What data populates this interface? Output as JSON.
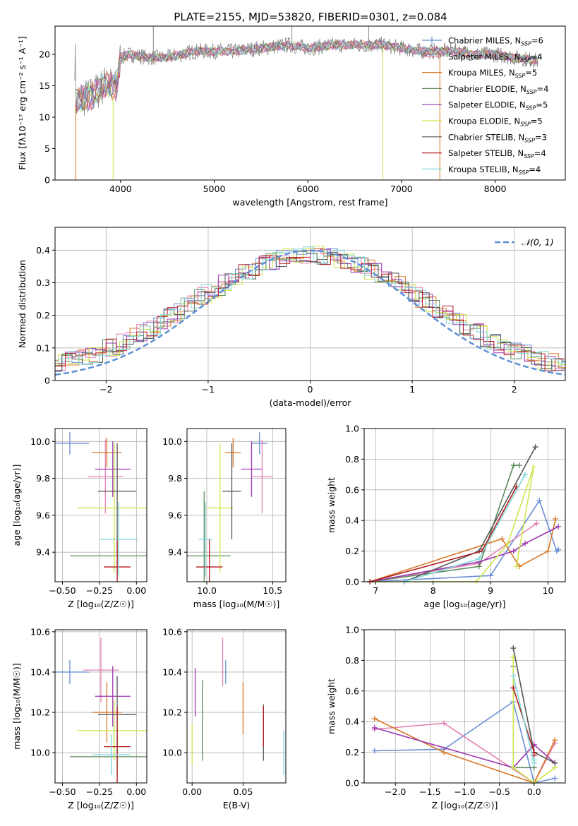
{
  "colors": {
    "chabrier_miles": "#6a8fd6",
    "salpeter_miles": "#e67fb3",
    "kroupa_miles": "#d97828",
    "chabrier_elodie": "#5c8a5c",
    "salpeter_elodie": "#9a3ab0",
    "kroupa_elodie": "#cde64c",
    "chabrier_stelib": "#555555",
    "salpeter_stelib": "#b3191e",
    "kroupa_stelib": "#7fd6d9",
    "data_spectrum": "#888888",
    "gaussian": "#5b8fd6",
    "grid": "#b0b0b0"
  },
  "chart_data": [
    {
      "id": "spectrum",
      "type": "line",
      "title": "PLATE=2155, MJD=53820, FIBERID=0301, z=0.084",
      "xlabel": "wavelength [Angstrom, rest frame]",
      "ylabel": "Flux [fλ10⁻¹⁷ erg cm⁻² s⁻¹ A⁻¹]",
      "xlim": [
        3300,
        8750
      ],
      "ylim": [
        0,
        24.5
      ],
      "xticks": [
        4000,
        5000,
        6000,
        7000,
        8000
      ],
      "yticks": [
        0,
        5,
        10,
        15,
        20
      ],
      "grid": false,
      "legend_position": "right",
      "legend": [
        {
          "label": "Chabrier MILES, N",
          "sub": "SSP",
          "suffix": "=6",
          "key": "chabrier_miles",
          "marker": true
        },
        {
          "label": "Salpeter MILES, N",
          "sub": "SSP",
          "suffix": "=4",
          "key": "salpeter_miles",
          "marker": false
        },
        {
          "label": "Kroupa MILES, N",
          "sub": "SSP",
          "suffix": "=5",
          "key": "kroupa_miles",
          "marker": false
        },
        {
          "label": "Chabrier ELODIE, N",
          "sub": "SSP",
          "suffix": "=4",
          "key": "chabrier_elodie",
          "marker": false
        },
        {
          "label": "Salpeter ELODIE, N",
          "sub": "SSP",
          "suffix": "=5",
          "key": "salpeter_elodie",
          "marker": false
        },
        {
          "label": "Kroupa ELODIE, N",
          "sub": "SSP",
          "suffix": "=5",
          "key": "kroupa_elodie",
          "marker": false
        },
        {
          "label": "Chabrier STELIB, N",
          "sub": "SSP",
          "suffix": "=3",
          "key": "chabrier_stelib",
          "marker": false
        },
        {
          "label": "Salpeter STELIB, N",
          "sub": "SSP",
          "suffix": "=4",
          "key": "salpeter_stelib",
          "marker": false
        },
        {
          "label": "Kroupa STELIB, N",
          "sub": "SSP",
          "suffix": "=4",
          "key": "kroupa_stelib",
          "marker": false
        }
      ],
      "continuum": {
        "x": [
          3520,
          3700,
          3850,
          3950,
          4000,
          4100,
          4300,
          4500,
          4800,
          5200,
          5500,
          5800,
          6000,
          6300,
          6600,
          6800,
          7000,
          7200,
          7400,
          7600,
          7800,
          8000,
          8200,
          8450
        ],
        "y": [
          12.5,
          13.5,
          15.5,
          14.5,
          19.5,
          20.0,
          19.5,
          19.5,
          20.5,
          20.5,
          21.0,
          21.5,
          21.0,
          21.5,
          21.5,
          21.5,
          21.0,
          20.5,
          20.5,
          20.5,
          20.0,
          20.0,
          19.5,
          19.0
        ]
      },
      "data_spikes": {
        "x": [
          3920,
          4350,
          5830,
          6750,
          7400
        ],
        "y": [
          0,
          24.5,
          24.5,
          24.5,
          0
        ]
      }
    },
    {
      "id": "residual_hist",
      "type": "step",
      "xlabel": "(data-model)/error",
      "ylabel": "Normed distribution",
      "xlim": [
        -2.5,
        2.5
      ],
      "ylim": [
        0,
        0.47
      ],
      "xticks": [
        -2,
        -1,
        0,
        1,
        2
      ],
      "yticks": [
        0.0,
        0.1,
        0.2,
        0.3,
        0.4
      ],
      "grid": true,
      "legend": [
        {
          "label": "𝒩(0, 1)",
          "style": "dashed",
          "key": "gaussian"
        }
      ],
      "bin_width": 0.1
    },
    {
      "id": "age_vs_Z",
      "type": "errorbar",
      "xlabel": "Z [log₁₀(Z/Z☉)]",
      "ylabel": "age  [log₁₀(age/yr)]",
      "xlim": [
        -0.55,
        0.07
      ],
      "ylim": [
        9.24,
        10.07
      ],
      "xticks": [
        -0.5,
        -0.25,
        0.0
      ],
      "ytick_labels": [
        "9.4",
        "9.6",
        "9.8",
        "10.0"
      ],
      "ytick_values": [
        9.4,
        9.6,
        9.8,
        10.0
      ],
      "grid": true,
      "points": [
        {
          "key": "chabrier_miles",
          "x": -0.45,
          "y": 9.99,
          "xerr": 0.13,
          "yerr": 0.06
        },
        {
          "key": "salpeter_miles",
          "x": -0.21,
          "y": 9.81,
          "xerr": 0.12,
          "yerr": 0.2
        },
        {
          "key": "kroupa_miles",
          "x": -0.2,
          "y": 9.94,
          "xerr": 0.1,
          "yerr": 0.08
        },
        {
          "key": "chabrier_elodie",
          "x": -0.13,
          "y": 9.38,
          "xerr": 0.32,
          "yerr": 0.1
        },
        {
          "key": "salpeter_elodie",
          "x": -0.16,
          "y": 9.85,
          "xerr": 0.12,
          "yerr": 0.15
        },
        {
          "key": "kroupa_elodie",
          "x": -0.15,
          "y": 9.64,
          "xerr": 0.25,
          "yerr": 0.35
        },
        {
          "key": "chabrier_stelib",
          "x": -0.13,
          "y": 9.73,
          "xerr": 0.13,
          "yerr": 0.26
        },
        {
          "key": "salpeter_stelib",
          "x": -0.13,
          "y": 9.32,
          "xerr": 0.09,
          "yerr": 0.15
        },
        {
          "key": "kroupa_stelib",
          "x": -0.12,
          "y": 9.47,
          "xerr": 0.13,
          "yerr": 0.2
        }
      ]
    },
    {
      "id": "age_vs_mass",
      "type": "errorbar",
      "xlabel": "mass [log₁₀(M/M☉)]",
      "xlim": [
        9.85,
        10.6
      ],
      "ylim": [
        9.24,
        10.07
      ],
      "xticks": [
        10.0,
        10.5
      ],
      "ytick_labels": [
        "9.4",
        "9.6",
        "9.8",
        "10.0"
      ],
      "ytick_values": [
        9.4,
        9.6,
        9.8,
        10.0
      ],
      "grid": true,
      "points": [
        {
          "key": "chabrier_miles",
          "x": 10.4,
          "y": 9.99,
          "xerr": 0.06,
          "yerr": 0.06
        },
        {
          "key": "salpeter_miles",
          "x": 10.42,
          "y": 9.81,
          "xerr": 0.08,
          "yerr": 0.2
        },
        {
          "key": "kroupa_miles",
          "x": 10.2,
          "y": 9.94,
          "xerr": 0.06,
          "yerr": 0.08
        },
        {
          "key": "chabrier_elodie",
          "x": 9.98,
          "y": 9.38,
          "xerr": 0.2,
          "yerr": 0.35
        },
        {
          "key": "salpeter_elodie",
          "x": 10.34,
          "y": 9.85,
          "xerr": 0.08,
          "yerr": 0.15
        },
        {
          "key": "kroupa_elodie",
          "x": 10.1,
          "y": 9.64,
          "xerr": 0.1,
          "yerr": 0.35
        },
        {
          "key": "chabrier_stelib",
          "x": 10.19,
          "y": 9.73,
          "xerr": 0.07,
          "yerr": 0.26
        },
        {
          "key": "salpeter_stelib",
          "x": 10.02,
          "y": 9.32,
          "xerr": 0.1,
          "yerr": 0.15
        },
        {
          "key": "kroupa_stelib",
          "x": 9.99,
          "y": 9.47,
          "xerr": 0.05,
          "yerr": 0.2
        }
      ]
    },
    {
      "id": "mass_weight_vs_age",
      "type": "line",
      "xlabel": "age  [log₁₀(age/yr)]",
      "ylabel": "mass weight",
      "xlim": [
        6.8,
        10.3
      ],
      "ylim": [
        0,
        1
      ],
      "xticks": [
        7,
        8,
        9,
        10
      ],
      "yticks": [
        0.0,
        0.2,
        0.4,
        0.6,
        0.8,
        1.0
      ],
      "grid": true,
      "series": [
        {
          "key": "chabrier_miles",
          "x": [
            6.9,
            9.0,
            9.85,
            10.15,
            10.18
          ],
          "y": [
            0.0,
            0.04,
            0.53,
            0.2,
            0.21
          ]
        },
        {
          "key": "salpeter_miles",
          "x": [
            6.9,
            8.8,
            9.8
          ],
          "y": [
            0.0,
            0.12,
            0.38
          ]
        },
        {
          "key": "kroupa_miles",
          "x": [
            6.9,
            9.2,
            9.5,
            10.0,
            10.13
          ],
          "y": [
            0.0,
            0.28,
            0.1,
            0.2,
            0.41
          ]
        },
        {
          "key": "chabrier_elodie",
          "x": [
            6.9,
            8.8,
            9.4,
            9.5
          ],
          "y": [
            0.0,
            0.1,
            0.76,
            0.76
          ]
        },
        {
          "key": "salpeter_elodie",
          "x": [
            6.9,
            8.8,
            9.4,
            9.6,
            10.18
          ],
          "y": [
            0.0,
            0.13,
            0.2,
            0.25,
            0.36
          ]
        },
        {
          "key": "kroupa_elodie",
          "x": [
            6.9,
            8.75,
            9.3,
            9.75,
            9.45
          ],
          "y": [
            0.0,
            0.0,
            0.25,
            0.75,
            0.1
          ]
        },
        {
          "key": "chabrier_stelib",
          "x": [
            7.5,
            8.8,
            9.78
          ],
          "y": [
            0.0,
            0.2,
            0.88
          ]
        },
        {
          "key": "salpeter_stelib",
          "x": [
            6.9,
            8.85,
            9.45
          ],
          "y": [
            0.0,
            0.2,
            0.62
          ]
        },
        {
          "key": "kroupa_stelib",
          "x": [
            7.5,
            8.8,
            9.6
          ],
          "y": [
            0.0,
            0.15,
            0.7
          ]
        }
      ]
    },
    {
      "id": "mass_vs_Z",
      "type": "errorbar",
      "xlabel": "Z [log₁₀(Z/Z☉)]",
      "ylabel": "mass [log₁₀(M/M☉)]",
      "xlim": [
        -0.55,
        0.07
      ],
      "ylim": [
        9.85,
        10.61
      ],
      "xticks": [
        -0.5,
        -0.25,
        0.0
      ],
      "ytick_labels": [
        "10.0",
        "10.2",
        "10.4",
        "10.6"
      ],
      "ytick_values": [
        10.0,
        10.2,
        10.4,
        10.6
      ],
      "grid": true,
      "points": [
        {
          "key": "chabrier_miles",
          "x": -0.45,
          "y": 10.4,
          "xerr": 0.13,
          "yerr": 0.06
        },
        {
          "key": "salpeter_miles",
          "x": -0.24,
          "y": 10.41,
          "xerr": 0.12,
          "yerr": 0.16
        },
        {
          "key": "kroupa_miles",
          "x": -0.2,
          "y": 10.2,
          "xerr": 0.1,
          "yerr": 0.15
        },
        {
          "key": "chabrier_elodie",
          "x": -0.13,
          "y": 9.98,
          "xerr": 0.32,
          "yerr": 0.1
        },
        {
          "key": "salpeter_elodie",
          "x": -0.16,
          "y": 10.28,
          "xerr": 0.12,
          "yerr": 0.15
        },
        {
          "key": "kroupa_elodie",
          "x": -0.15,
          "y": 10.11,
          "xerr": 0.25,
          "yerr": 0.15
        },
        {
          "key": "chabrier_stelib",
          "x": -0.13,
          "y": 10.19,
          "xerr": 0.13,
          "yerr": 0.19
        },
        {
          "key": "salpeter_stelib",
          "x": -0.13,
          "y": 10.03,
          "xerr": 0.09,
          "yerr": 0.2
        },
        {
          "key": "kroupa_stelib",
          "x": -0.17,
          "y": 9.99,
          "xerr": 0.13,
          "yerr": 0.1
        }
      ]
    },
    {
      "id": "mass_vs_ebv",
      "type": "errorbar",
      "xlabel": "E(B-V)",
      "xlim": [
        -0.005,
        0.092
      ],
      "ylim": [
        9.85,
        10.61
      ],
      "xticks": [
        0.0,
        0.05
      ],
      "ytick_labels": [
        "10.0",
        "10.2",
        "10.4",
        "10.6"
      ],
      "ytick_values": [
        10.0,
        10.2,
        10.4,
        10.6
      ],
      "grid": true,
      "points": [
        {
          "key": "chabrier_miles",
          "x": 0.033,
          "y": 10.4,
          "xerr": 0.0,
          "yerr": 0.06
        },
        {
          "key": "salpeter_miles",
          "x": 0.03,
          "y": 10.45,
          "xerr": 0.0,
          "yerr": 0.12
        },
        {
          "key": "kroupa_miles",
          "x": 0.05,
          "y": 10.22,
          "xerr": 0.0,
          "yerr": 0.13
        },
        {
          "key": "chabrier_elodie",
          "x": 0.01,
          "y": 10.16,
          "xerr": 0.0,
          "yerr": 0.2
        },
        {
          "key": "salpeter_elodie",
          "x": 0.003,
          "y": 10.3,
          "xerr": 0.0,
          "yerr": 0.12
        },
        {
          "key": "kroupa_elodie",
          "x": 0.0,
          "y": 10.04,
          "xerr": 0.0,
          "yerr": 0.1
        },
        {
          "key": "chabrier_stelib",
          "x": 0.07,
          "y": 10.1,
          "xerr": 0.0,
          "yerr": 0.14
        },
        {
          "key": "salpeter_stelib",
          "x": 0.07,
          "y": 10.13,
          "xerr": 0.0,
          "yerr": 0.1
        },
        {
          "key": "kroupa_stelib",
          "x": 0.09,
          "y": 10.0,
          "xerr": 0.0,
          "yerr": 0.11
        }
      ]
    },
    {
      "id": "mass_weight_vs_Z",
      "type": "line",
      "xlabel": "Z [log₁₀(Z/Z☉)]",
      "ylabel": "mass weight",
      "xlim": [
        -2.45,
        0.45
      ],
      "ylim": [
        0,
        1
      ],
      "xticks": [
        -2.0,
        -1.5,
        -1.0,
        -0.5,
        0.0
      ],
      "yticks": [
        0.0,
        0.2,
        0.4,
        0.6,
        0.8,
        1.0
      ],
      "grid": true,
      "series": [
        {
          "key": "chabrier_miles",
          "x": [
            -2.3,
            -1.3,
            -0.3,
            0.0,
            0.3
          ],
          "y": [
            0.21,
            0.22,
            0.53,
            0.0,
            0.03
          ]
        },
        {
          "key": "salpeter_miles",
          "x": [
            -2.3,
            -1.3,
            0.0,
            0.3
          ],
          "y": [
            0.35,
            0.39,
            0.0,
            0.26
          ]
        },
        {
          "key": "kroupa_miles",
          "x": [
            -2.3,
            -1.3,
            0.0,
            0.3
          ],
          "y": [
            0.42,
            0.2,
            0.0,
            0.28
          ]
        },
        {
          "key": "chabrier_elodie",
          "x": [
            -0.3,
            -0.3,
            0.0
          ],
          "y": [
            0.76,
            0.1,
            0.1
          ]
        },
        {
          "key": "salpeter_elodie",
          "x": [
            -2.3,
            -0.3,
            0.0,
            0.3
          ],
          "y": [
            0.36,
            0.1,
            0.25,
            0.13
          ]
        },
        {
          "key": "kroupa_elodie",
          "x": [
            -0.3,
            -0.3,
            0.0,
            0.3
          ],
          "y": [
            0.82,
            0.1,
            0.0,
            0.1
          ]
        },
        {
          "key": "chabrier_stelib",
          "x": [
            -0.3,
            0.0,
            0.3
          ],
          "y": [
            0.88,
            0.2,
            0.13
          ]
        },
        {
          "key": "salpeter_stelib",
          "x": [
            -0.3,
            0.0,
            0.0
          ],
          "y": [
            0.62,
            0.2,
            0.18
          ]
        },
        {
          "key": "kroupa_stelib",
          "x": [
            -0.3,
            0.0,
            0.0
          ],
          "y": [
            0.7,
            0.13,
            0.15
          ]
        }
      ]
    }
  ]
}
